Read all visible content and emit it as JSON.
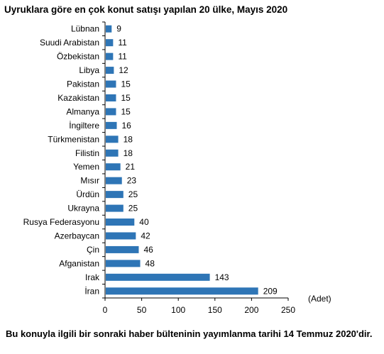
{
  "chart_data": {
    "type": "bar",
    "orientation": "horizontal",
    "title": "Uyruklara göre en çok konut satışı yapılan 20 ülke, Mayıs 2020",
    "categories": [
      "Lübnan",
      "Suudi Arabistan",
      "Özbekistan",
      "Libya",
      "Pakistan",
      "Kazakistan",
      "Almanya",
      "İngiltere",
      "Türkmenistan",
      "Filistin",
      "Yemen",
      "Mısır",
      "Ürdün",
      "Ukrayna",
      "Rusya Federasyonu",
      "Azerbaycan",
      "Çin",
      "Afganistan",
      "Irak",
      "İran"
    ],
    "values": [
      9,
      11,
      11,
      12,
      15,
      15,
      15,
      16,
      18,
      18,
      21,
      23,
      25,
      25,
      40,
      42,
      46,
      48,
      143,
      209
    ],
    "xlim": [
      0,
      250
    ],
    "xticks": [
      0,
      50,
      100,
      150,
      200,
      250
    ],
    "unit_label": "(Adet)",
    "bar_color": "#2e75b6",
    "grid": false,
    "data_labels": true
  },
  "footnote": "Bu konuyla ilgili bir sonraki haber bülteninin yayımlanma tarihi 14 Temmuz 2020'dir."
}
